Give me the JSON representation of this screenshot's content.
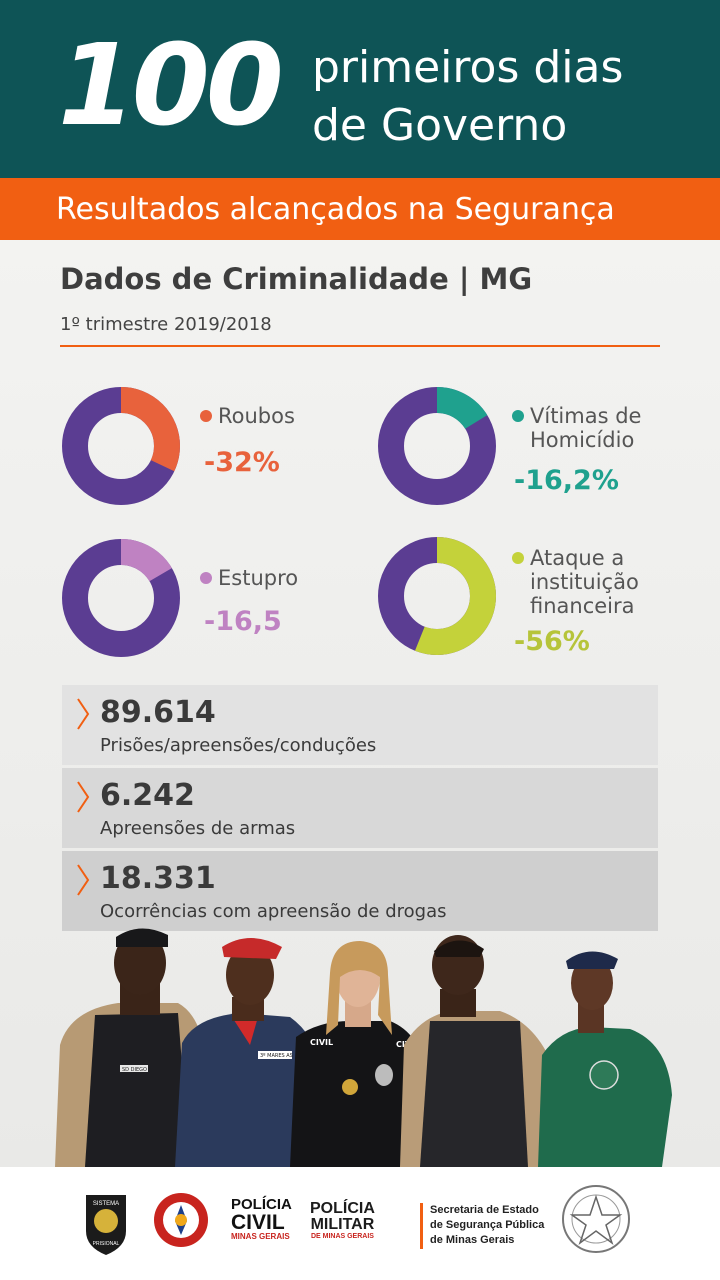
{
  "header": {
    "number": "100",
    "line1": "primeiros dias",
    "line2": "de Governo"
  },
  "subheader": "Resultados alcançados na Segurança",
  "section": {
    "title": "Dados de Criminalidade | MG",
    "subtitle": "1º trimestre 2019/2018"
  },
  "chart_data": {
    "type": "pie",
    "title": "Dados de Criminalidade | MG",
    "items": [
      {
        "label": "Roubos",
        "change": "-32%",
        "value": 32,
        "color": "#e8623c"
      },
      {
        "label_lines": [
          "Vítimas de",
          "Homicídio"
        ],
        "change": "-16,2%",
        "value": 16.2,
        "color": "#1fa18e"
      },
      {
        "label": "Estupro",
        "change": "-16,5",
        "value": 16.5,
        "color": "#bf82c2"
      },
      {
        "label_lines": [
          "Ataque a",
          "instituição",
          "financeira"
        ],
        "change": "-56%",
        "value": 56,
        "color": "#c4d23a"
      }
    ],
    "base_color": "#5b3d92"
  },
  "stats": [
    {
      "value": "89.614",
      "label": "Prisões/apreensões/conduções"
    },
    {
      "value": "6.242",
      "label": "Apreensões de armas"
    },
    {
      "value": "18.331",
      "label": "Ocorrências com apreensão de drogas"
    }
  ],
  "colors": {
    "teal_header": "#0e5456",
    "orange": "#f15f12",
    "stat_bg": [
      "#e2e2e2",
      "#d8d8d8",
      "#cfcfcf"
    ]
  },
  "logos": {
    "sistema": [
      "SISTEMA",
      "PRISIONAL"
    ],
    "bombeiros": "CORPO DE BOMBEIROS MILITAR",
    "policia_civil": [
      "POLÍCIA",
      "CIVIL",
      "MINAS GERAIS"
    ],
    "policia_militar": [
      "POLÍCIA",
      "MILITAR",
      "DE MINAS GERAIS"
    ],
    "secretaria": [
      "Secretaria de Estado",
      "de Segurança Pública",
      "de Minas Gerais"
    ],
    "estado": "ESTADO DE MINAS GERAIS"
  },
  "officers": {
    "badges": [
      "SD DIEGO",
      "3º MARES AS",
      "CIVIL",
      "CIVIL"
    ]
  }
}
